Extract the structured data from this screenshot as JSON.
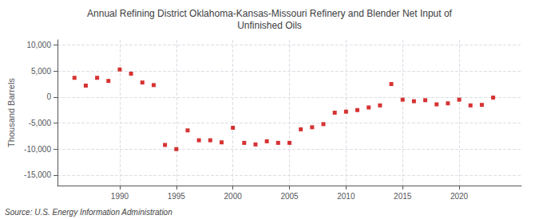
{
  "chart_data": {
    "type": "scatter",
    "title": "Annual Refining District Oklahoma-Kansas-Missouri Refinery and Blender Net Input of\nUnfinished Oils",
    "ylabel": "Thousand Barrels",
    "annotations": [
      "Source: U.S. Energy Information Administration"
    ],
    "x": [
      1986,
      1987,
      1988,
      1989,
      1990,
      1991,
      1992,
      1993,
      1994,
      1995,
      1996,
      1997,
      1998,
      1999,
      2000,
      2001,
      2002,
      2003,
      2004,
      2005,
      2006,
      2007,
      2008,
      2009,
      2010,
      2011,
      2012,
      2013,
      2014,
      2015,
      2016,
      2017,
      2018,
      2019,
      2020,
      2021,
      2022,
      2023
    ],
    "values": [
      3700,
      2200,
      3700,
      3100,
      5300,
      4500,
      2800,
      2300,
      -9200,
      -10000,
      -6400,
      -8300,
      -8300,
      -8700,
      -5900,
      -8800,
      -9100,
      -8500,
      -8800,
      -8800,
      -6200,
      -5800,
      -5200,
      -3000,
      -2800,
      -2500,
      -2000,
      -1600,
      2500,
      -500,
      -800,
      -600,
      -1400,
      -1200,
      -500,
      -1600,
      -1500,
      -100
    ],
    "color": "#cc0000",
    "marker": "square",
    "xlim": [
      1984.5,
      2025.5
    ],
    "xticks": [
      1990,
      1995,
      2000,
      2005,
      2010,
      2015,
      2020
    ],
    "ylim": [
      -17000,
      11000
    ],
    "yticks": [
      {
        "value": -15000,
        "label": "-15,000"
      },
      {
        "value": -10000,
        "label": "-10,000"
      },
      {
        "value": -5000,
        "label": "-5,000"
      },
      0,
      {
        "value": 5000,
        "label": "5,000"
      },
      {
        "value": 10000,
        "label": "10,000"
      }
    ],
    "grid": true
  }
}
